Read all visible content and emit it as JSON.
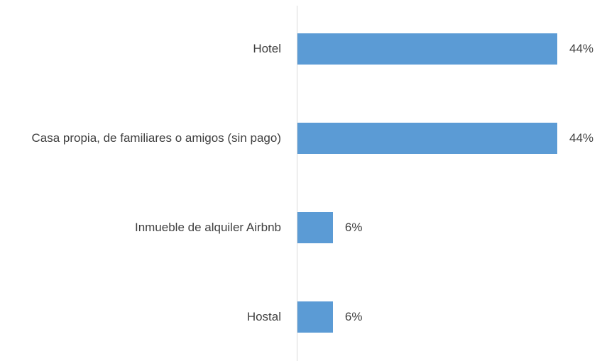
{
  "chart_data": {
    "type": "bar",
    "orientation": "horizontal",
    "categories": [
      "Hotel",
      "Casa propia, de familiares o amigos (sin pago)",
      "Inmueble de alquiler Airbnb",
      "Hostal"
    ],
    "values": [
      44,
      44,
      6,
      6
    ],
    "value_labels": [
      "44%",
      "44%",
      "6%",
      "6%"
    ],
    "color": "#5b9bd5"
  }
}
